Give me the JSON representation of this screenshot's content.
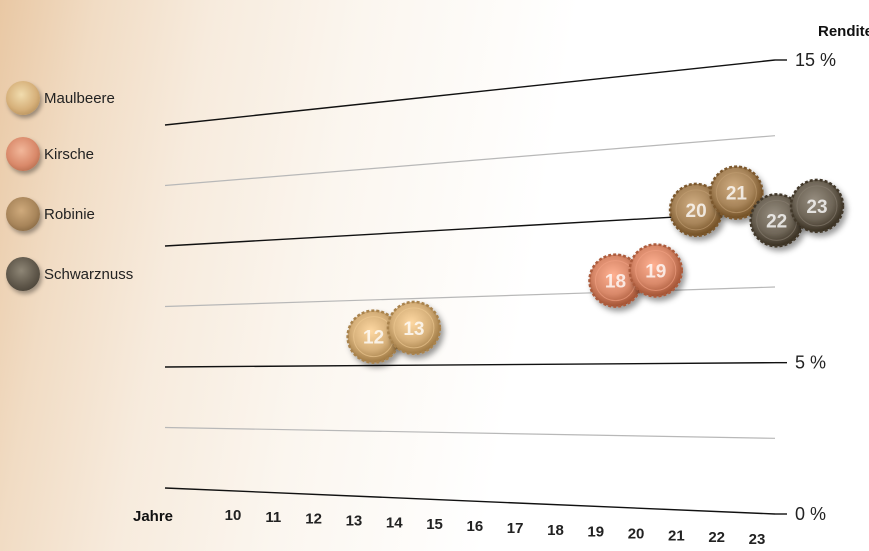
{
  "chart_data": {
    "type": "scatter",
    "xlabel": "Jahre",
    "ylabel": "Rendite",
    "xlim": [
      10,
      23
    ],
    "ylim": [
      0,
      15
    ],
    "x_ticks": [
      "10",
      "11",
      "12",
      "13",
      "14",
      "15",
      "16",
      "17",
      "18",
      "19",
      "20",
      "21",
      "22",
      "23"
    ],
    "y_ticks": [
      "0 %",
      "5 %",
      "10 %",
      "15 %"
    ],
    "grid": true,
    "legend_position": "left",
    "series": [
      {
        "name": "Maulbeere",
        "color": "#d6b07a",
        "icon": "wood-slice-icon",
        "points": [
          {
            "x": 12,
            "y": 6.1,
            "label": "12"
          },
          {
            "x": 13,
            "y": 6.4,
            "label": "13"
          }
        ]
      },
      {
        "name": "Kirsche",
        "color": "#d9896a",
        "icon": "wood-slice-icon",
        "points": [
          {
            "x": 18,
            "y": 7.9,
            "label": "18"
          },
          {
            "x": 19,
            "y": 8.2,
            "label": "19"
          }
        ]
      },
      {
        "name": "Robinie",
        "color": "#a8855a",
        "icon": "wood-slice-icon",
        "points": [
          {
            "x": 20,
            "y": 10.2,
            "label": "20"
          },
          {
            "x": 21,
            "y": 10.7,
            "label": "21"
          }
        ]
      },
      {
        "name": "Schwarznuss",
        "color": "#6f6658",
        "icon": "wood-slice-icon",
        "points": [
          {
            "x": 22,
            "y": 9.7,
            "label": "22"
          },
          {
            "x": 23,
            "y": 10.1,
            "label": "23"
          }
        ]
      }
    ]
  }
}
